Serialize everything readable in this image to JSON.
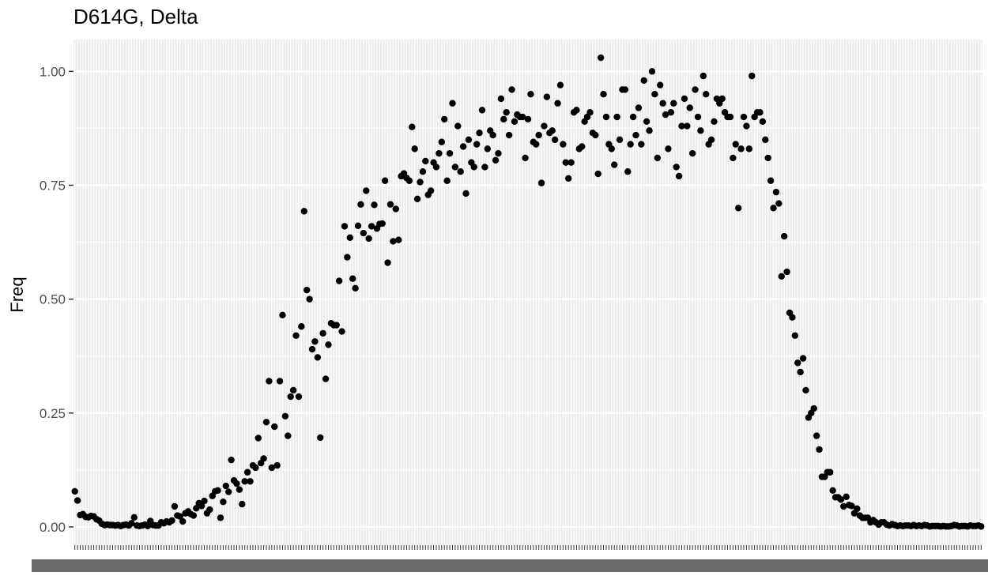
{
  "chart_data": {
    "type": "scatter",
    "title": "D614G, Delta",
    "xlabel": "",
    "ylabel": "Freq",
    "ylim": [
      -0.04,
      1.07
    ],
    "yticks": [
      0,
      0.25,
      0.5,
      0.75,
      1.0
    ],
    "ytick_labels": [
      "0.00",
      "0.25",
      "0.50",
      "0.75",
      "1.00"
    ],
    "x_axis": "categorical",
    "x_tick_labels_legible": false,
    "grid": true,
    "point_color": "#000000",
    "panel_background": "#ebebeb",
    "grid_color": "#ffffff",
    "y": [
      0.078,
      0.058,
      0.026,
      0.028,
      0.022,
      0.021,
      0.024,
      0.023,
      0.017,
      0.014,
      0.007,
      0.004,
      0.005,
      0.004,
      0.004,
      0.003,
      0.004,
      0.002,
      0.004,
      0.005,
      0.003,
      0.008,
      0.021,
      0.003,
      0.002,
      0.003,
      0.005,
      0.002,
      0.013,
      0.004,
      0.003,
      0.003,
      0.01,
      0.008,
      0.012,
      0.01,
      0.014,
      0.045,
      0.025,
      0.023,
      0.012,
      0.03,
      0.034,
      0.028,
      0.025,
      0.041,
      0.052,
      0.046,
      0.057,
      0.03,
      0.038,
      0.068,
      0.078,
      0.08,
      0.02,
      0.055,
      0.09,
      0.077,
      0.147,
      0.102,
      0.095,
      0.082,
      0.05,
      0.1,
      0.12,
      0.1,
      0.135,
      0.13,
      0.195,
      0.14,
      0.15,
      0.23,
      0.32,
      0.13,
      0.22,
      0.135,
      0.32,
      0.465,
      0.243,
      0.2,
      0.286,
      0.3,
      0.42,
      0.286,
      0.44,
      0.693,
      0.52,
      0.5,
      0.39,
      0.407,
      0.372,
      0.196,
      0.425,
      0.325,
      0.4,
      0.447,
      0.443,
      0.443,
      0.54,
      0.429,
      0.66,
      0.592,
      0.635,
      0.545,
      0.524,
      0.661,
      0.708,
      0.645,
      0.738,
      0.633,
      0.66,
      0.707,
      0.655,
      0.665,
      0.666,
      0.76,
      0.58,
      0.708,
      0.627,
      0.698,
      0.63,
      0.77,
      0.776,
      0.766,
      0.76,
      0.878,
      0.83,
      0.72,
      0.757,
      0.78,
      0.803,
      0.729,
      0.738,
      0.8,
      0.79,
      0.82,
      0.845,
      0.895,
      0.76,
      0.82,
      0.93,
      0.79,
      0.88,
      0.78,
      0.835,
      0.732,
      0.85,
      0.8,
      0.79,
      0.84,
      0.865,
      0.915,
      0.79,
      0.83,
      0.87,
      0.86,
      0.805,
      0.82,
      0.94,
      0.895,
      0.91,
      0.86,
      0.96,
      0.89,
      0.905,
      0.9,
      0.9,
      0.81,
      0.895,
      0.95,
      0.845,
      0.84,
      0.86,
      0.755,
      0.88,
      0.944,
      0.865,
      0.87,
      0.85,
      0.93,
      0.97,
      0.84,
      0.8,
      0.765,
      0.8,
      0.91,
      0.915,
      0.83,
      0.835,
      0.89,
      0.9,
      0.91,
      0.865,
      0.86,
      0.775,
      1.03,
      0.95,
      0.9,
      0.84,
      0.83,
      0.795,
      0.9,
      0.85,
      0.96,
      0.96,
      0.78,
      0.84,
      0.9,
      0.86,
      0.92,
      0.84,
      0.98,
      0.89,
      0.87,
      1.0,
      0.95,
      0.81,
      0.97,
      0.93,
      0.905,
      0.83,
      0.91,
      0.93,
      0.79,
      0.77,
      0.88,
      0.94,
      0.88,
      0.92,
      0.82,
      0.96,
      0.9,
      0.87,
      0.99,
      0.95,
      0.84,
      0.85,
      0.89,
      0.94,
      0.93,
      0.94,
      0.91,
      0.9,
      0.9,
      0.81,
      0.84,
      0.7,
      0.83,
      0.9,
      0.88,
      0.83,
      0.99,
      0.9,
      0.91,
      0.91,
      0.89,
      0.85,
      0.81,
      0.76,
      0.7,
      0.735,
      0.71,
      0.55,
      0.638,
      0.56,
      0.47,
      0.46,
      0.42,
      0.36,
      0.34,
      0.37,
      0.3,
      0.24,
      0.25,
      0.26,
      0.2,
      0.17,
      0.11,
      0.11,
      0.12,
      0.12,
      0.08,
      0.065,
      0.065,
      0.06,
      0.045,
      0.066,
      0.048,
      0.046,
      0.03,
      0.04,
      0.025,
      0.02,
      0.02,
      0.02,
      0.01,
      0.015,
      0.01,
      0.005,
      0.01,
      0.01,
      0.005,
      0.003,
      0.006,
      0.004,
      0.002,
      0.003,
      0.002,
      0.003,
      0.003,
      0.002,
      0.004,
      0.002,
      0.003,
      0.002,
      0.004,
      0.003,
      0.001,
      0.002,
      0.002,
      0.002,
      0.001,
      0.002,
      0.001,
      0.001,
      0.002,
      0.004,
      0.003,
      0.001,
      0.002,
      0.002,
      0.001,
      0.003,
      0.002,
      0.002,
      0.003,
      0.001
    ]
  }
}
